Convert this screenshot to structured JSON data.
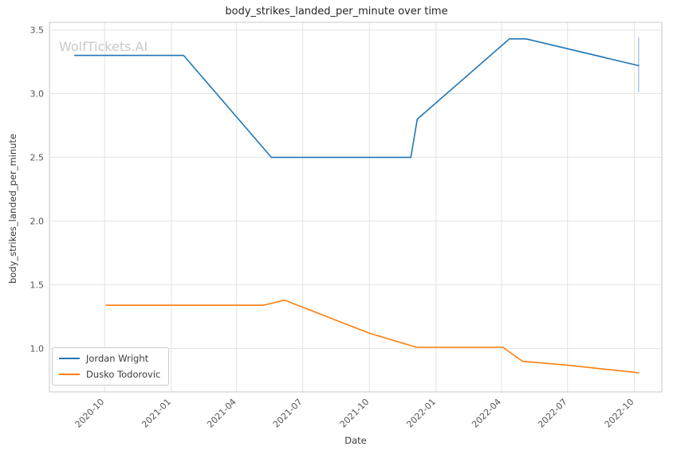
{
  "watermark": "WolfTickets.AI",
  "chart_data": {
    "type": "line",
    "title": "body_strikes_landed_per_minute over time",
    "xlabel": "Date",
    "ylabel": "body_strikes_landed_per_minute",
    "grid": true,
    "legend_position": "lower left",
    "xlim": [
      "2020-07-17",
      "2022-11-08"
    ],
    "ylim": [
      0.66,
      3.56
    ],
    "x_ticks": [
      {
        "date": "2020-10-01",
        "label": "2020-10"
      },
      {
        "date": "2021-01-01",
        "label": "2021-01"
      },
      {
        "date": "2021-04-01",
        "label": "2021-04"
      },
      {
        "date": "2021-07-01",
        "label": "2021-07"
      },
      {
        "date": "2021-10-01",
        "label": "2021-10"
      },
      {
        "date": "2022-01-01",
        "label": "2022-01"
      },
      {
        "date": "2022-04-01",
        "label": "2022-04"
      },
      {
        "date": "2022-07-01",
        "label": "2022-07"
      },
      {
        "date": "2022-10-01",
        "label": "2022-10"
      }
    ],
    "y_ticks": [
      {
        "value": 1.0,
        "label": "1.0"
      },
      {
        "value": 1.5,
        "label": "1.5"
      },
      {
        "value": 2.0,
        "label": "2.0"
      },
      {
        "value": 2.5,
        "label": "2.5"
      },
      {
        "value": 3.0,
        "label": "3.0"
      },
      {
        "value": 3.5,
        "label": "3.5"
      }
    ],
    "series": [
      {
        "name": "Jordan Wright",
        "color": "#1f77b4",
        "points": [
          {
            "date": "2020-08-21",
            "value": 3.3
          },
          {
            "date": "2021-01-18",
            "value": 3.3
          },
          {
            "date": "2021-05-19",
            "value": 2.5
          },
          {
            "date": "2021-11-27",
            "value": 2.5
          },
          {
            "date": "2021-12-06",
            "value": 2.8
          },
          {
            "date": "2022-04-12",
            "value": 3.43
          },
          {
            "date": "2022-05-05",
            "value": 3.43
          },
          {
            "date": "2022-10-07",
            "value": 3.22
          }
        ]
      },
      {
        "name": "Dusko Todorovic",
        "color": "#ff7f0e",
        "points": [
          {
            "date": "2020-10-03",
            "value": 1.34
          },
          {
            "date": "2021-05-08",
            "value": 1.34
          },
          {
            "date": "2021-06-06",
            "value": 1.38
          },
          {
            "date": "2021-10-01",
            "value": 1.12
          },
          {
            "date": "2021-12-05",
            "value": 1.01
          },
          {
            "date": "2022-04-03",
            "value": 1.01
          },
          {
            "date": "2022-04-30",
            "value": 0.9
          },
          {
            "date": "2022-07-01",
            "value": 0.87
          },
          {
            "date": "2022-10-07",
            "value": 0.81
          }
        ]
      }
    ],
    "error_bar": {
      "series": "Jordan Wright",
      "date": "2022-10-07",
      "y_min": 3.01,
      "y_max": 3.44,
      "color": "#aac7e2"
    }
  }
}
